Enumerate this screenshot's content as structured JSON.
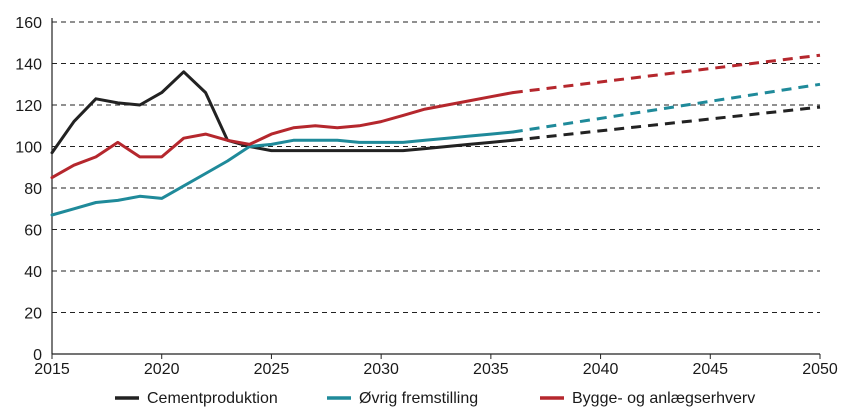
{
  "chart_data": {
    "type": "line",
    "title": "",
    "xlabel": "",
    "ylabel": "",
    "xlim": [
      2015,
      2050
    ],
    "ylim": [
      0,
      160
    ],
    "x_ticks": [
      "2015",
      "2020",
      "2025",
      "2030",
      "2035",
      "2040",
      "2045",
      "2050"
    ],
    "y_ticks": [
      "0",
      "20",
      "40",
      "60",
      "80",
      "100",
      "120",
      "140",
      "160"
    ],
    "grid": "horizontal dashed",
    "legend_position": "bottom",
    "projection_start": 2036,
    "projection_style": "dashed",
    "series": [
      {
        "name": "Cementproduktion",
        "color": "#222222",
        "points": [
          [
            2015,
            97
          ],
          [
            2016,
            112
          ],
          [
            2017,
            123
          ],
          [
            2018,
            121
          ],
          [
            2019,
            120
          ],
          [
            2020,
            126
          ],
          [
            2021,
            136
          ],
          [
            2022,
            126
          ],
          [
            2023,
            103
          ],
          [
            2024,
            100
          ],
          [
            2025,
            98
          ],
          [
            2026,
            98
          ],
          [
            2027,
            98
          ],
          [
            2028,
            98
          ],
          [
            2029,
            98
          ],
          [
            2030,
            98
          ],
          [
            2031,
            98
          ],
          [
            2032,
            99
          ],
          [
            2033,
            100
          ],
          [
            2034,
            101
          ],
          [
            2035,
            102
          ],
          [
            2036,
            103
          ],
          [
            2050,
            119
          ]
        ]
      },
      {
        "name": "Øvrig fremstilling",
        "color": "#1f8a9a",
        "points": [
          [
            2015,
            67
          ],
          [
            2016,
            70
          ],
          [
            2017,
            73
          ],
          [
            2018,
            74
          ],
          [
            2019,
            76
          ],
          [
            2020,
            75
          ],
          [
            2021,
            81
          ],
          [
            2022,
            87
          ],
          [
            2023,
            93
          ],
          [
            2024,
            100
          ],
          [
            2025,
            101
          ],
          [
            2026,
            103
          ],
          [
            2027,
            103
          ],
          [
            2028,
            103
          ],
          [
            2029,
            102
          ],
          [
            2030,
            102
          ],
          [
            2031,
            102
          ],
          [
            2032,
            103
          ],
          [
            2033,
            104
          ],
          [
            2034,
            105
          ],
          [
            2035,
            106
          ],
          [
            2036,
            107
          ],
          [
            2050,
            130
          ]
        ]
      },
      {
        "name": "Bygge- og anlægserhverv",
        "color": "#b5272d",
        "points": [
          [
            2015,
            85
          ],
          [
            2016,
            91
          ],
          [
            2017,
            95
          ],
          [
            2018,
            102
          ],
          [
            2019,
            95
          ],
          [
            2020,
            95
          ],
          [
            2021,
            104
          ],
          [
            2022,
            106
          ],
          [
            2023,
            103
          ],
          [
            2024,
            101
          ],
          [
            2025,
            106
          ],
          [
            2026,
            109
          ],
          [
            2027,
            110
          ],
          [
            2028,
            109
          ],
          [
            2029,
            110
          ],
          [
            2030,
            112
          ],
          [
            2031,
            115
          ],
          [
            2032,
            118
          ],
          [
            2033,
            120
          ],
          [
            2034,
            122
          ],
          [
            2035,
            124
          ],
          [
            2036,
            126
          ],
          [
            2050,
            144
          ]
        ]
      }
    ]
  }
}
